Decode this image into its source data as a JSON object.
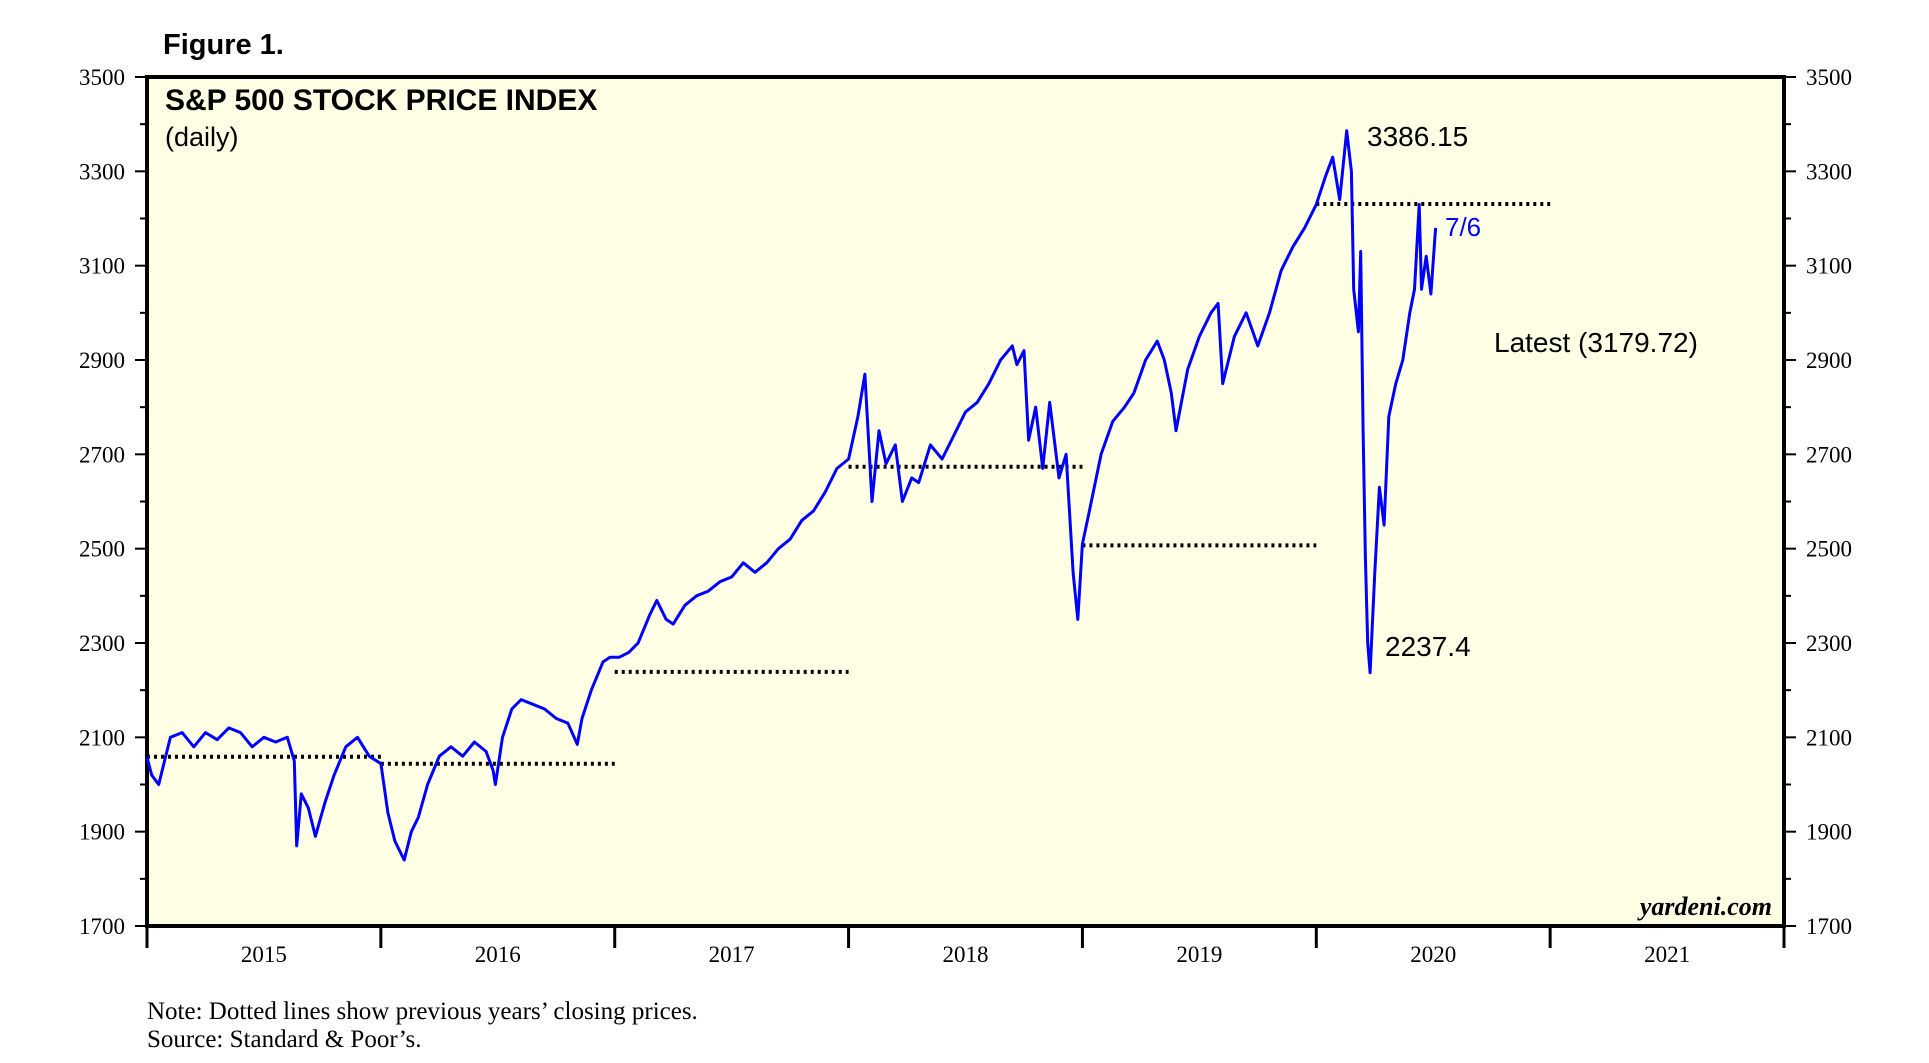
{
  "figure_label": "Figure 1.",
  "chart_data": {
    "type": "line",
    "title": "S&P 500 STOCK PRICE INDEX",
    "subtitle": "(daily)",
    "ylim": [
      1700,
      3500
    ],
    "yticks": [
      1700,
      1900,
      2100,
      2300,
      2500,
      2700,
      2900,
      3100,
      3300,
      3500
    ],
    "xlim": [
      2015,
      2022
    ],
    "xticks": [
      "2015",
      "2016",
      "2017",
      "2018",
      "2019",
      "2020",
      "2021"
    ],
    "grid": false,
    "series": [
      {
        "name": "S&P 500",
        "color": "#0000ff",
        "x": [
          2015.0,
          2015.02,
          2015.05,
          2015.08,
          2015.1,
          2015.15,
          2015.2,
          2015.25,
          2015.3,
          2015.35,
          2015.4,
          2015.45,
          2015.5,
          2015.55,
          2015.6,
          2015.63,
          2015.64,
          2015.66,
          2015.69,
          2015.72,
          2015.76,
          2015.8,
          2015.85,
          2015.9,
          2015.95,
          2016.0,
          2016.03,
          2016.06,
          2016.1,
          2016.13,
          2016.16,
          2016.2,
          2016.25,
          2016.3,
          2016.35,
          2016.4,
          2016.45,
          2016.48,
          2016.49,
          2016.52,
          2016.56,
          2016.6,
          2016.65,
          2016.7,
          2016.75,
          2016.8,
          2016.84,
          2016.86,
          2016.9,
          2016.95,
          2016.98,
          2017.02,
          2017.06,
          2017.1,
          2017.15,
          2017.18,
          2017.22,
          2017.25,
          2017.3,
          2017.35,
          2017.4,
          2017.45,
          2017.5,
          2017.55,
          2017.6,
          2017.65,
          2017.7,
          2017.75,
          2017.8,
          2017.85,
          2017.9,
          2017.95,
          2018.0,
          2018.04,
          2018.07,
          2018.1,
          2018.13,
          2018.16,
          2018.2,
          2018.23,
          2018.27,
          2018.3,
          2018.35,
          2018.4,
          2018.45,
          2018.5,
          2018.55,
          2018.6,
          2018.65,
          2018.7,
          2018.72,
          2018.75,
          2018.77,
          2018.8,
          2018.83,
          2018.86,
          2018.9,
          2018.93,
          2018.96,
          2018.98,
          2019.0,
          2019.03,
          2019.08,
          2019.13,
          2019.18,
          2019.22,
          2019.27,
          2019.32,
          2019.35,
          2019.38,
          2019.4,
          2019.45,
          2019.5,
          2019.55,
          2019.58,
          2019.6,
          2019.62,
          2019.65,
          2019.7,
          2019.75,
          2019.8,
          2019.85,
          2019.9,
          2019.95,
          2020.0,
          2020.04,
          2020.07,
          2020.1,
          2020.13,
          2020.15,
          2020.16,
          2020.18,
          2020.19,
          2020.2,
          2020.21,
          2020.22,
          2020.23,
          2020.25,
          2020.27,
          2020.29,
          2020.31,
          2020.34,
          2020.37,
          2020.4,
          2020.42,
          2020.44,
          2020.45,
          2020.47,
          2020.49,
          2020.51
        ],
        "y": [
          2058,
          2020,
          2000,
          2060,
          2100,
          2110,
          2080,
          2110,
          2095,
          2120,
          2110,
          2080,
          2100,
          2090,
          2100,
          2050,
          1870,
          1980,
          1950,
          1890,
          1960,
          2020,
          2080,
          2100,
          2060,
          2044,
          1940,
          1880,
          1840,
          1900,
          1930,
          2000,
          2060,
          2080,
          2060,
          2090,
          2070,
          2030,
          2000,
          2100,
          2160,
          2180,
          2170,
          2160,
          2140,
          2130,
          2085,
          2140,
          2200,
          2260,
          2270,
          2270,
          2280,
          2300,
          2360,
          2390,
          2350,
          2340,
          2380,
          2400,
          2410,
          2430,
          2440,
          2470,
          2450,
          2470,
          2500,
          2520,
          2560,
          2580,
          2620,
          2670,
          2690,
          2780,
          2870,
          2600,
          2750,
          2680,
          2720,
          2600,
          2650,
          2640,
          2720,
          2690,
          2740,
          2790,
          2810,
          2850,
          2900,
          2930,
          2890,
          2920,
          2730,
          2800,
          2670,
          2810,
          2650,
          2700,
          2450,
          2350,
          2510,
          2580,
          2700,
          2770,
          2800,
          2830,
          2900,
          2940,
          2900,
          2830,
          2750,
          2880,
          2950,
          3000,
          3020,
          2850,
          2890,
          2950,
          3000,
          2930,
          3000,
          3090,
          3140,
          3180,
          3230,
          3290,
          3330,
          3240,
          3386,
          3300,
          3050,
          2960,
          3130,
          2750,
          2480,
          2300,
          2237,
          2450,
          2630,
          2550,
          2780,
          2850,
          2900,
          3000,
          3050,
          3230,
          3050,
          3120,
          3040,
          3180
        ]
      }
    ],
    "annotations": [
      "3386.15",
      "7/6",
      "Latest (3179.72)",
      "2237.4"
    ],
    "watermark": "yardeni.com",
    "reference_lines": [
      {
        "year": 2015,
        "value": 2058.9
      },
      {
        "year": 2016,
        "value": 2043.94
      },
      {
        "year": 2017,
        "value": 2238.83
      },
      {
        "year": 2018,
        "value": 2673.61
      },
      {
        "year": 2019,
        "value": 2506.85
      },
      {
        "year": 2020,
        "value": 3230.78
      }
    ]
  },
  "notes": {
    "note": "Note: Dotted lines show previous years’ closing prices.",
    "source": "Source: Standard & Poor’s."
  }
}
